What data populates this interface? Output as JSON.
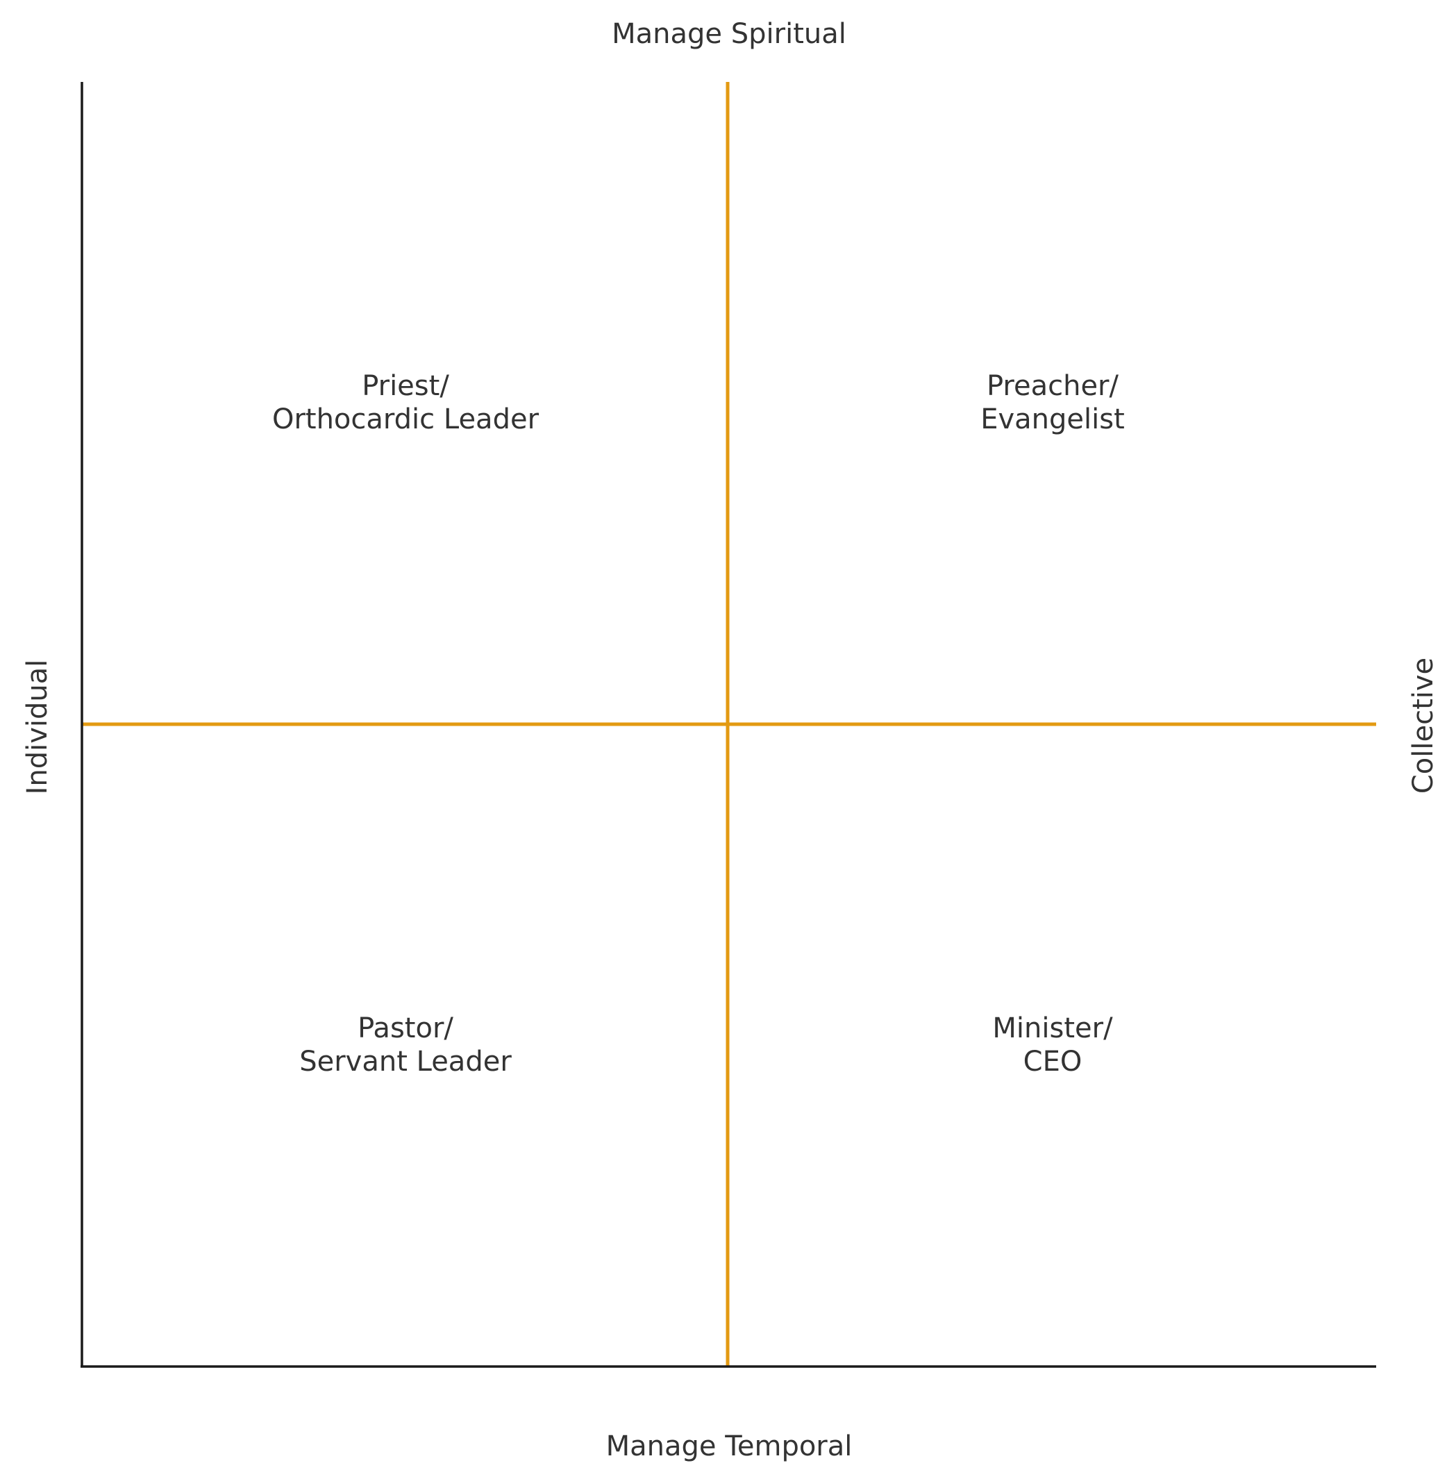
{
  "diagram": {
    "axis_labels": {
      "top": "Manage Spiritual",
      "bottom": "Manage Temporal",
      "left": "Individual",
      "right": "Collective"
    },
    "quadrants": {
      "top_left": {
        "line1": "Priest/",
        "line2": "Orthocardic Leader"
      },
      "top_right": {
        "line1": "Preacher/",
        "line2": "Evangelist"
      },
      "bottom_left": {
        "line1": "Pastor/",
        "line2": "Servant Leader"
      },
      "bottom_right": {
        "line1": "Minister/",
        "line2": "CEO"
      }
    },
    "colors": {
      "divider": "#E39A12",
      "axis": "#1a1a1a",
      "text": "#333333"
    }
  }
}
